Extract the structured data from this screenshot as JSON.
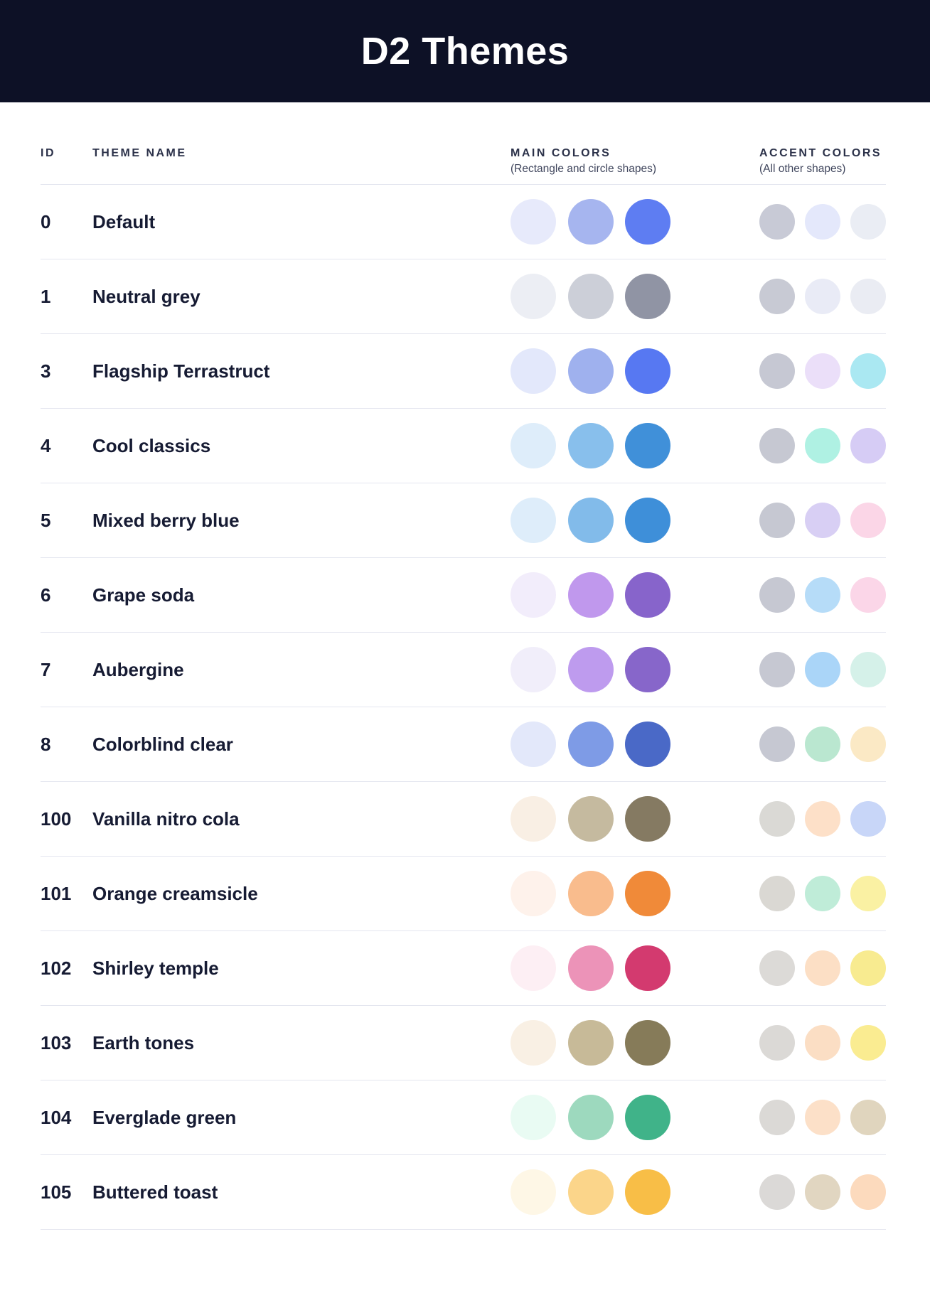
{
  "page": {
    "title": "D2 Themes"
  },
  "colors": {
    "header_bg": "#0D1126",
    "title_text": "#FFFFFF",
    "column_heading": "#2B3149",
    "subtitle": "#3F455C",
    "row_text": "#161B33",
    "divider": "#E4E6EF"
  },
  "columns": {
    "id_label": "ID",
    "name_label": "THEME NAME",
    "main_label": "MAIN COLORS",
    "main_sublabel": "(Rectangle and circle shapes)",
    "accent_label": "ACCENT COLORS",
    "accent_sublabel": "(All other shapes)"
  },
  "themes": [
    {
      "id": "0",
      "name": "Default",
      "main": [
        "#E7EAFB",
        "#A6B5EF",
        "#5E7DF2"
      ],
      "accent": [
        "#C8CAD6",
        "#E4E8FB",
        "#EAEDF4"
      ]
    },
    {
      "id": "1",
      "name": "Neutral grey",
      "main": [
        "#ECEEF4",
        "#CCCFD8",
        "#9094A4"
      ],
      "accent": [
        "#C8CAD4",
        "#E9EBF6",
        "#EAECF3"
      ]
    },
    {
      "id": "3",
      "name": "Flagship Terrastruct",
      "main": [
        "#E3E8FB",
        "#9FB1EE",
        "#5778F2"
      ],
      "accent": [
        "#C6C8D3",
        "#EBDFF9",
        "#AAE8F2"
      ]
    },
    {
      "id": "4",
      "name": "Cool classics",
      "main": [
        "#DEEDFA",
        "#88BFEC",
        "#4090D9"
      ],
      "accent": [
        "#C6C8D2",
        "#AFF1E3",
        "#D6CCF5"
      ]
    },
    {
      "id": "5",
      "name": "Mixed berry blue",
      "main": [
        "#DEEDFA",
        "#82BBEA",
        "#3E8FD9"
      ],
      "accent": [
        "#C6C8D2",
        "#D8CFF4",
        "#FBD6E7"
      ]
    },
    {
      "id": "6",
      "name": "Grape soda",
      "main": [
        "#F2EDFB",
        "#C098ED",
        "#8764CB"
      ],
      "accent": [
        "#C6C8D2",
        "#B6DCF8",
        "#FBD6E8"
      ]
    },
    {
      "id": "7",
      "name": "Aubergine",
      "main": [
        "#F1EEFA",
        "#BE9BEE",
        "#8766CA"
      ],
      "accent": [
        "#C6C8D2",
        "#AAD5F8",
        "#D5F1E9"
      ]
    },
    {
      "id": "8",
      "name": "Colorblind clear",
      "main": [
        "#E3E8FA",
        "#7E9BE6",
        "#4A69C7"
      ],
      "accent": [
        "#C6C8D2",
        "#BAE7D0",
        "#FBE9C5"
      ]
    },
    {
      "id": "100",
      "name": "Vanilla nitro cola",
      "main": [
        "#F9EFE4",
        "#C5BA9F",
        "#857A62"
      ],
      "accent": [
        "#DAD9D5",
        "#FDE0C8",
        "#C8D6F8"
      ]
    },
    {
      "id": "101",
      "name": "Orange creamsicle",
      "main": [
        "#FEF2EB",
        "#F9BC8D",
        "#F08A39"
      ],
      "accent": [
        "#DAD8D3",
        "#BFECD8",
        "#FAF1A3"
      ]
    },
    {
      "id": "102",
      "name": "Shirley temple",
      "main": [
        "#FDEFF4",
        "#EC93B8",
        "#D33A6F"
      ],
      "accent": [
        "#DCDAD7",
        "#FCDFC5",
        "#F8EB90"
      ]
    },
    {
      "id": "103",
      "name": "Earth tones",
      "main": [
        "#F9F0E4",
        "#C7BA98",
        "#867B59"
      ],
      "accent": [
        "#DBD9D6",
        "#FBDEC4",
        "#FAEC91"
      ]
    },
    {
      "id": "104",
      "name": "Everglade green",
      "main": [
        "#E9FBF3",
        "#9DD9BE",
        "#40B389"
      ],
      "accent": [
        "#DBD9D6",
        "#FCE0C8",
        "#E0D5BE"
      ]
    },
    {
      "id": "105",
      "name": "Buttered toast",
      "main": [
        "#FEF7E6",
        "#FBD58A",
        "#F8BE47"
      ],
      "accent": [
        "#DBD9D7",
        "#E1D6C1",
        "#FCDABD"
      ]
    }
  ]
}
